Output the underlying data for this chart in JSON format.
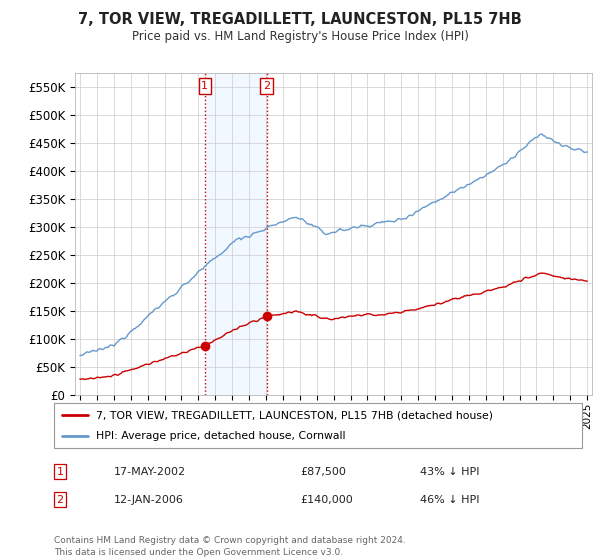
{
  "title": "7, TOR VIEW, TREGADILLETT, LAUNCESTON, PL15 7HB",
  "subtitle": "Price paid vs. HM Land Registry's House Price Index (HPI)",
  "legend_line1": "7, TOR VIEW, TREGADILLETT, LAUNCESTON, PL15 7HB (detached house)",
  "legend_line2": "HPI: Average price, detached house, Cornwall",
  "annotation1_date": "17-MAY-2002",
  "annotation1_price": 87500,
  "annotation1_text": "43% ↓ HPI",
  "annotation2_date": "12-JAN-2006",
  "annotation2_price": 140000,
  "annotation2_text": "46% ↓ HPI",
  "sale1_x": 2002.38,
  "sale1_y": 87500,
  "sale2_x": 2006.04,
  "sale2_y": 140000,
  "red_color": "#cc0000",
  "blue_color": "#6699cc",
  "shade_color": "#ddeeff",
  "background_color": "#ffffff",
  "grid_color": "#cccccc",
  "footnote": "Contains HM Land Registry data © Crown copyright and database right 2024.\nThis data is licensed under the Open Government Licence v3.0.",
  "ylim": [
    0,
    575000
  ],
  "xlim_start": 1994.7,
  "xlim_end": 2025.3
}
